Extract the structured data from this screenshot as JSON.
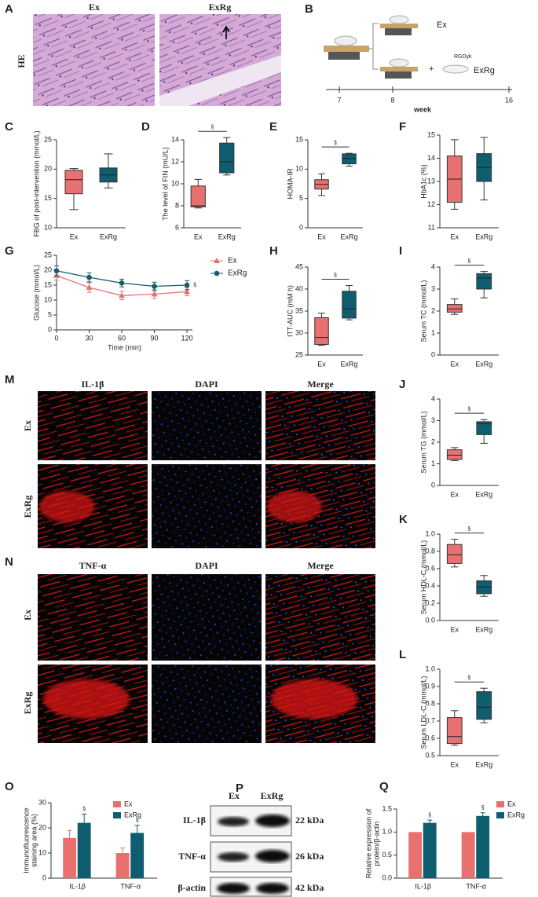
{
  "figure_a": {
    "panel": "A",
    "stain": "HE",
    "groups": [
      "Ex",
      "ExRg"
    ]
  },
  "figure_b": {
    "panel": "B",
    "groups": [
      "Ex",
      "ExRg"
    ],
    "agent": "RGDyk",
    "plus": "+",
    "timeline": [
      "7",
      "8",
      "16"
    ],
    "unit": "week"
  },
  "figure_m": {
    "panel": "M",
    "columns": [
      "IL-1β",
      "DAPI",
      "Merge"
    ],
    "rows": [
      "Ex",
      "ExRg"
    ]
  },
  "figure_n": {
    "panel": "N",
    "columns": [
      "TNF-α",
      "DAPI",
      "Merge"
    ],
    "rows": [
      "Ex",
      "ExRg"
    ]
  },
  "figure_p": {
    "panel": "P",
    "lanes": [
      "Ex",
      "ExRg"
    ],
    "rows": [
      {
        "protein": "IL-1β",
        "size": "22 kDa"
      },
      {
        "protein": "TNF-α",
        "size": "26 kDa"
      },
      {
        "protein": "β-actin",
        "size": "42 kDa"
      }
    ]
  },
  "chart_data": [
    {
      "panel": "C",
      "type": "box",
      "ylabel": "FBG of post-intervention (mmol/L)",
      "categories": [
        "Ex",
        "ExRg"
      ],
      "colors": [
        "#e8716f",
        "#0e5e6f"
      ],
      "min": [
        13.1,
        16.8
      ],
      "q1": [
        15.8,
        17.8
      ],
      "median": [
        18.2,
        19.0
      ],
      "q3": [
        19.8,
        20.2
      ],
      "max": [
        20.1,
        22.6
      ],
      "ylim": [
        10,
        25
      ],
      "yticks": [
        10,
        15,
        20,
        25
      ]
    },
    {
      "panel": "D",
      "type": "box",
      "ylabel": "The level of FIN (mU/L)",
      "categories": [
        "Ex",
        "ExRg"
      ],
      "colors": [
        "#e8716f",
        "#0e5e6f"
      ],
      "min": [
        7.8,
        10.8
      ],
      "q1": [
        7.9,
        11.0
      ],
      "median": [
        8.0,
        12.0
      ],
      "q3": [
        9.8,
        13.7
      ],
      "max": [
        10.4,
        14.2
      ],
      "ylim": [
        6,
        14
      ],
      "yticks": [
        6,
        8,
        10,
        12,
        14
      ],
      "annotation": "§"
    },
    {
      "panel": "E",
      "type": "box",
      "ylabel": "HOMA-IR",
      "categories": [
        "Ex",
        "ExRg"
      ],
      "colors": [
        "#e8716f",
        "#0e5e6f"
      ],
      "min": [
        5.5,
        10.5
      ],
      "q1": [
        6.6,
        10.9
      ],
      "median": [
        7.4,
        11.8
      ],
      "q3": [
        8.2,
        12.6
      ],
      "max": [
        9.2,
        12.7
      ],
      "ylim": [
        0,
        15
      ],
      "yticks": [
        0,
        5,
        10,
        15
      ],
      "annotation": "§"
    },
    {
      "panel": "F",
      "type": "box",
      "ylabel": "HbA1c (%)",
      "categories": [
        "Ex",
        "ExRg"
      ],
      "colors": [
        "#e8716f",
        "#0e5e6f"
      ],
      "min": [
        11.8,
        12.2
      ],
      "q1": [
        12.1,
        13.0
      ],
      "median": [
        13.1,
        13.6
      ],
      "q3": [
        14.1,
        14.2
      ],
      "max": [
        14.8,
        14.9
      ],
      "ylim": [
        11,
        15
      ],
      "yticks": [
        11,
        12,
        13,
        14,
        15
      ]
    },
    {
      "panel": "G",
      "type": "line",
      "ylabel": "Glucose (mmol/L)",
      "xlabel": "Time (min)",
      "x": [
        0,
        30,
        60,
        90,
        120
      ],
      "xlim": [
        0,
        125
      ],
      "xticks": [
        0,
        30,
        60,
        90,
        120
      ],
      "ylim": [
        0,
        25
      ],
      "yticks": [
        0,
        5,
        10,
        15,
        20,
        25
      ],
      "series": [
        {
          "name": "Ex",
          "color": "#e8716f",
          "marker": "triangle",
          "values": [
            18.2,
            14.2,
            11.5,
            12.0,
            12.8
          ],
          "errors": [
            1.5,
            1.6,
            1.4,
            1.5,
            1.4
          ]
        },
        {
          "name": "ExRg",
          "color": "#1a5a6a",
          "marker": "circle",
          "values": [
            19.8,
            17.6,
            15.7,
            14.6,
            15.0
          ],
          "errors": [
            1.6,
            1.5,
            1.3,
            1.4,
            1.5
          ]
        }
      ],
      "annotation": "§"
    },
    {
      "panel": "H",
      "type": "box",
      "ylabel": "ITT-AUC (mM  h)",
      "categories": [
        "Ex",
        "ExRg"
      ],
      "colors": [
        "#e8716f",
        "#0e5e6f"
      ],
      "min": [
        27.2,
        33.0
      ],
      "q1": [
        27.4,
        33.4
      ],
      "median": [
        29.0,
        35.5
      ],
      "q3": [
        33.5,
        39.5
      ],
      "max": [
        34.5,
        40.8
      ],
      "ylim": [
        25,
        45
      ],
      "yticks": [
        25,
        30,
        35,
        40,
        45
      ],
      "annotation": "§"
    },
    {
      "panel": "I",
      "type": "box",
      "ylabel": "Serum TC (mmol/L)",
      "categories": [
        "Ex",
        "ExRg"
      ],
      "colors": [
        "#e8716f",
        "#0e5e6f"
      ],
      "min": [
        1.85,
        2.6
      ],
      "q1": [
        1.95,
        3.0
      ],
      "median": [
        2.1,
        3.5
      ],
      "q3": [
        2.3,
        3.7
      ],
      "max": [
        2.55,
        3.8
      ],
      "ylim": [
        0,
        4
      ],
      "yticks": [
        0,
        1,
        2,
        3,
        4
      ],
      "annotation": "§"
    },
    {
      "panel": "J",
      "type": "box",
      "ylabel": "Serum TG (mmol/L)",
      "categories": [
        "Ex",
        "ExRg"
      ],
      "colors": [
        "#e8716f",
        "#0e5e6f"
      ],
      "min": [
        1.15,
        1.95
      ],
      "q1": [
        1.2,
        2.35
      ],
      "median": [
        1.4,
        2.85
      ],
      "q3": [
        1.65,
        2.95
      ],
      "max": [
        1.75,
        3.05
      ],
      "ylim": [
        0,
        4
      ],
      "yticks": [
        0,
        1,
        2,
        3,
        4
      ],
      "annotation": "§"
    },
    {
      "panel": "K",
      "type": "box",
      "ylabel": "Serum HDL-C (mmol/L)",
      "categories": [
        "Ex",
        "ExRg"
      ],
      "colors": [
        "#e8716f",
        "#0e5e6f"
      ],
      "min": [
        0.62,
        0.28
      ],
      "q1": [
        0.66,
        0.31
      ],
      "median": [
        0.76,
        0.39
      ],
      "q3": [
        0.88,
        0.46
      ],
      "max": [
        0.94,
        0.52
      ],
      "ylim": [
        0,
        1
      ],
      "yticks": [
        {
          "value": 0,
          "label": "0.0"
        },
        0.2,
        0.4,
        0.6,
        0.8,
        {
          "value": 1,
          "label": "1.0"
        }
      ],
      "annotation": "§"
    },
    {
      "panel": "L",
      "type": "box",
      "ylabel": "Serum LDL-C (mmol/L)",
      "categories": [
        "Ex",
        "ExRg"
      ],
      "colors": [
        "#e8716f",
        "#0e5e6f"
      ],
      "min": [
        0.56,
        0.69
      ],
      "q1": [
        0.57,
        0.71
      ],
      "median": [
        0.61,
        0.78
      ],
      "q3": [
        0.72,
        0.87
      ],
      "max": [
        0.76,
        0.89
      ],
      "ylim": [
        0.5,
        1
      ],
      "yticks": [
        0.5,
        0.6,
        0.7,
        0.8,
        0.9,
        {
          "value": 1,
          "label": "1.0"
        }
      ],
      "annotation": "§"
    },
    {
      "panel": "O",
      "type": "bar",
      "ylabel": [
        "Immunofluorescence",
        "staining area (%)"
      ],
      "categories": [
        "IL-1β",
        "TNF-α"
      ],
      "ylim": [
        0,
        30
      ],
      "yticks": [
        0,
        10,
        20,
        30
      ],
      "series": [
        {
          "name": "Ex",
          "color": "#e8716f",
          "values": [
            16,
            10
          ],
          "errors": [
            3,
            2
          ]
        },
        {
          "name": "ExRg",
          "color": "#0e5e6f",
          "values": [
            22,
            18
          ],
          "errors": [
            3.5,
            3
          ]
        }
      ],
      "annotation": "§"
    },
    {
      "panel": "Q",
      "type": "bar",
      "ylabel": [
        "Relative expression of",
        "protein/β-actin"
      ],
      "categories": [
        "IL-1β",
        "TNF-α"
      ],
      "ylim": [
        0,
        1.5
      ],
      "yticks": [
        {
          "value": 0,
          "label": "0.0"
        },
        0.5,
        {
          "value": 1,
          "label": "1.0"
        },
        1.5
      ],
      "series": [
        {
          "name": "Ex",
          "color": "#e8716f",
          "values": [
            1.0,
            1.0
          ]
        },
        {
          "name": "ExRg",
          "color": "#0e5e6f",
          "values": [
            1.2,
            1.35
          ],
          "errors": [
            0.06,
            0.07
          ]
        }
      ],
      "annotation": "§"
    }
  ]
}
